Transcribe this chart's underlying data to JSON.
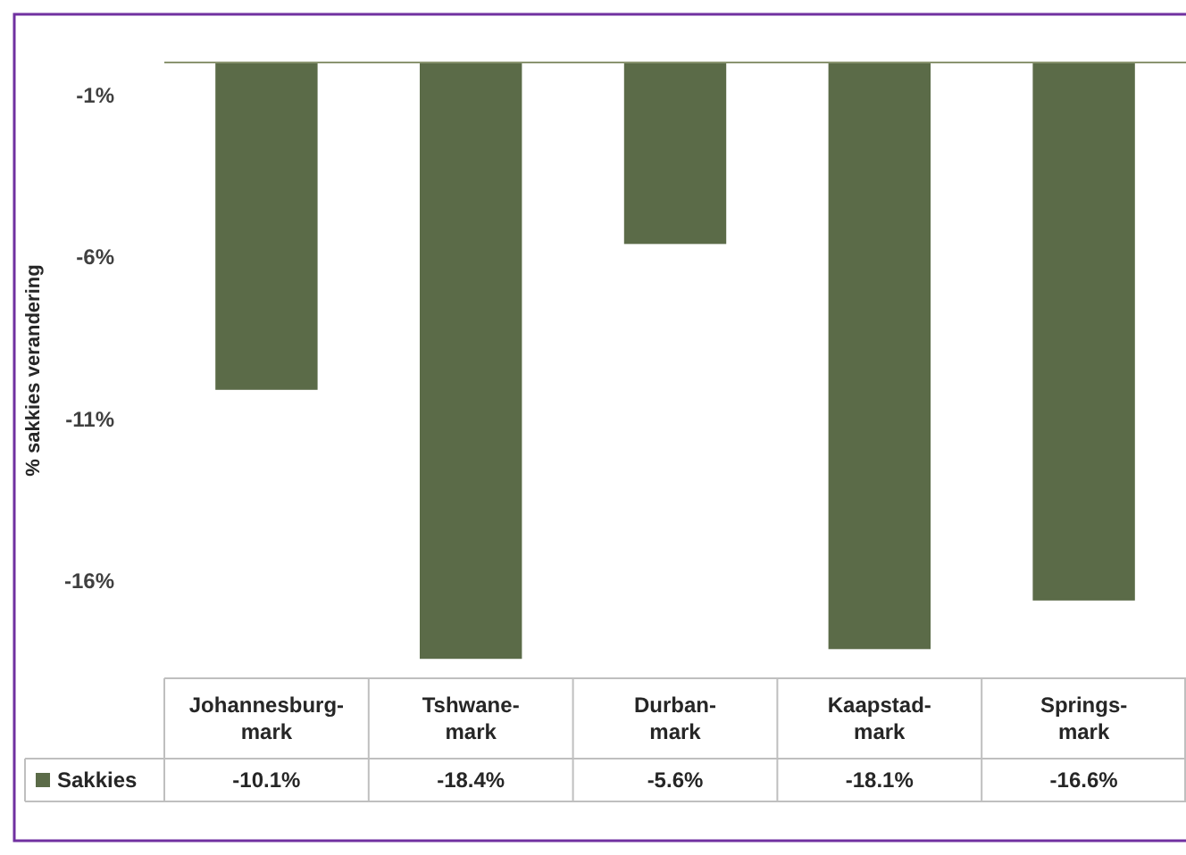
{
  "chart_data": {
    "type": "bar",
    "ylabel": "% sakkies verandering",
    "categories": [
      "Johannesburg-mark",
      "Tshwane-mark",
      "Durban-mark",
      "Kaapstad-mark",
      "Springs-mark"
    ],
    "series": [
      {
        "name": "Sakkies",
        "color": "#5b6b48",
        "values": [
          -10.1,
          -18.4,
          -5.6,
          -18.1,
          -16.6
        ],
        "value_labels": [
          "-10.1%",
          "-18.4%",
          "-5.6%",
          "-18.1%",
          "-16.6%"
        ]
      }
    ],
    "ylim": [
      -19,
      0
    ],
    "yticks": [
      {
        "value": -1,
        "label": "-1%"
      },
      {
        "value": -6,
        "label": "-6%"
      },
      {
        "value": -11,
        "label": "-11%"
      },
      {
        "value": -16,
        "label": "-16%"
      }
    ],
    "legend": "bottom",
    "grid": false
  }
}
